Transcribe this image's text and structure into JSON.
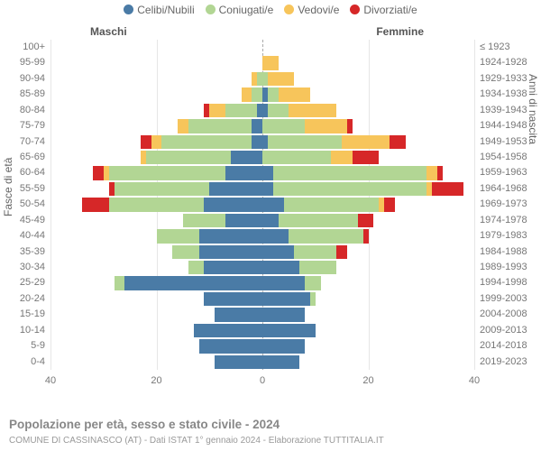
{
  "chart": {
    "type": "population-pyramid",
    "background_color": "#ffffff",
    "grid_color": "#e6e6e6",
    "center_line_color": "#aaaaaa",
    "label_color": "#777777",
    "header_color": "#555555",
    "label_fontsize": 11,
    "header_fontsize": 12,
    "title_fontsize": 13.5,
    "xlim": 40,
    "xtick_step": 20,
    "legend": {
      "items": [
        {
          "label": "Celibi/Nubili",
          "color": "#4a7ba6"
        },
        {
          "label": "Coniugati/e",
          "color": "#b2d694"
        },
        {
          "label": "Vedovi/e",
          "color": "#f7c55b"
        },
        {
          "label": "Divorziati/e",
          "color": "#d62728"
        }
      ]
    },
    "columns": {
      "male": "Maschi",
      "female": "Femmine"
    },
    "axis_left": "Fasce di età",
    "axis_right": "Anni di nascita",
    "rows": [
      {
        "age": "100+",
        "birth": "≤ 1923",
        "m": {
          "cel": 0,
          "con": 0,
          "ved": 0,
          "div": 0
        },
        "f": {
          "cel": 0,
          "con": 0,
          "ved": 0,
          "div": 0
        }
      },
      {
        "age": "95-99",
        "birth": "1924-1928",
        "m": {
          "cel": 0,
          "con": 0,
          "ved": 0,
          "div": 0
        },
        "f": {
          "cel": 0,
          "con": 0,
          "ved": 3,
          "div": 0
        }
      },
      {
        "age": "90-94",
        "birth": "1929-1933",
        "m": {
          "cel": 0,
          "con": 1,
          "ved": 1,
          "div": 0
        },
        "f": {
          "cel": 0,
          "con": 1,
          "ved": 5,
          "div": 0
        }
      },
      {
        "age": "85-89",
        "birth": "1934-1938",
        "m": {
          "cel": 0,
          "con": 2,
          "ved": 2,
          "div": 0
        },
        "f": {
          "cel": 1,
          "con": 2,
          "ved": 6,
          "div": 0
        }
      },
      {
        "age": "80-84",
        "birth": "1939-1943",
        "m": {
          "cel": 1,
          "con": 6,
          "ved": 3,
          "div": 1
        },
        "f": {
          "cel": 1,
          "con": 4,
          "ved": 9,
          "div": 0
        }
      },
      {
        "age": "75-79",
        "birth": "1944-1948",
        "m": {
          "cel": 2,
          "con": 12,
          "ved": 2,
          "div": 0
        },
        "f": {
          "cel": 0,
          "con": 8,
          "ved": 8,
          "div": 1
        }
      },
      {
        "age": "70-74",
        "birth": "1949-1953",
        "m": {
          "cel": 2,
          "con": 17,
          "ved": 2,
          "div": 2
        },
        "f": {
          "cel": 1,
          "con": 14,
          "ved": 9,
          "div": 3
        }
      },
      {
        "age": "65-69",
        "birth": "1954-1958",
        "m": {
          "cel": 6,
          "con": 16,
          "ved": 1,
          "div": 0
        },
        "f": {
          "cel": 0,
          "con": 13,
          "ved": 4,
          "div": 5
        }
      },
      {
        "age": "60-64",
        "birth": "1959-1963",
        "m": {
          "cel": 7,
          "con": 22,
          "ved": 1,
          "div": 2
        },
        "f": {
          "cel": 2,
          "con": 29,
          "ved": 2,
          "div": 1
        }
      },
      {
        "age": "55-59",
        "birth": "1964-1968",
        "m": {
          "cel": 10,
          "con": 18,
          "ved": 0,
          "div": 1
        },
        "f": {
          "cel": 2,
          "con": 29,
          "ved": 1,
          "div": 6
        }
      },
      {
        "age": "50-54",
        "birth": "1969-1973",
        "m": {
          "cel": 11,
          "con": 18,
          "ved": 0,
          "div": 5
        },
        "f": {
          "cel": 4,
          "con": 18,
          "ved": 1,
          "div": 2
        }
      },
      {
        "age": "45-49",
        "birth": "1974-1978",
        "m": {
          "cel": 7,
          "con": 8,
          "ved": 0,
          "div": 0
        },
        "f": {
          "cel": 3,
          "con": 15,
          "ved": 0,
          "div": 3
        }
      },
      {
        "age": "40-44",
        "birth": "1979-1983",
        "m": {
          "cel": 12,
          "con": 8,
          "ved": 0,
          "div": 0
        },
        "f": {
          "cel": 5,
          "con": 14,
          "ved": 0,
          "div": 1
        }
      },
      {
        "age": "35-39",
        "birth": "1984-1988",
        "m": {
          "cel": 12,
          "con": 5,
          "ved": 0,
          "div": 0
        },
        "f": {
          "cel": 6,
          "con": 8,
          "ved": 0,
          "div": 2
        }
      },
      {
        "age": "30-34",
        "birth": "1989-1993",
        "m": {
          "cel": 11,
          "con": 3,
          "ved": 0,
          "div": 0
        },
        "f": {
          "cel": 7,
          "con": 7,
          "ved": 0,
          "div": 0
        }
      },
      {
        "age": "25-29",
        "birth": "1994-1998",
        "m": {
          "cel": 26,
          "con": 2,
          "ved": 0,
          "div": 0
        },
        "f": {
          "cel": 8,
          "con": 3,
          "ved": 0,
          "div": 0
        }
      },
      {
        "age": "20-24",
        "birth": "1999-2003",
        "m": {
          "cel": 11,
          "con": 0,
          "ved": 0,
          "div": 0
        },
        "f": {
          "cel": 9,
          "con": 1,
          "ved": 0,
          "div": 0
        }
      },
      {
        "age": "15-19",
        "birth": "2004-2008",
        "m": {
          "cel": 9,
          "con": 0,
          "ved": 0,
          "div": 0
        },
        "f": {
          "cel": 8,
          "con": 0,
          "ved": 0,
          "div": 0
        }
      },
      {
        "age": "10-14",
        "birth": "2009-2013",
        "m": {
          "cel": 13,
          "con": 0,
          "ved": 0,
          "div": 0
        },
        "f": {
          "cel": 10,
          "con": 0,
          "ved": 0,
          "div": 0
        }
      },
      {
        "age": "5-9",
        "birth": "2014-2018",
        "m": {
          "cel": 12,
          "con": 0,
          "ved": 0,
          "div": 0
        },
        "f": {
          "cel": 8,
          "con": 0,
          "ved": 0,
          "div": 0
        }
      },
      {
        "age": "0-4",
        "birth": "2019-2023",
        "m": {
          "cel": 9,
          "con": 0,
          "ved": 0,
          "div": 0
        },
        "f": {
          "cel": 7,
          "con": 0,
          "ved": 0,
          "div": 0
        }
      }
    ],
    "xticks": [
      40,
      20,
      0,
      20,
      40
    ],
    "title": "Popolazione per età, sesso e stato civile - 2024",
    "subtitle": "COMUNE DI CASSINASCO (AT) - Dati ISTAT 1° gennaio 2024 - Elaborazione TUTTITALIA.IT"
  }
}
